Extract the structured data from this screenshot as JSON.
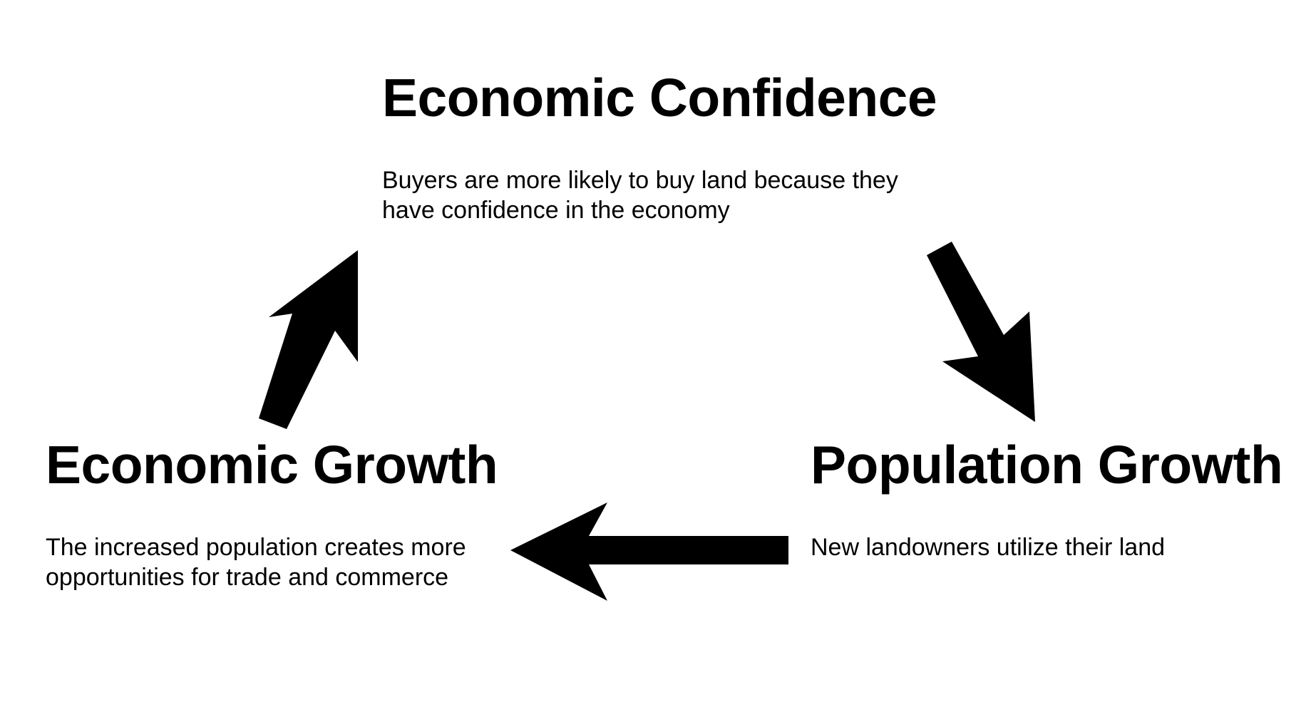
{
  "nodes": {
    "economic_confidence": {
      "title": "Economic Confidence",
      "description": "Buyers are more likely to buy land because they have confidence in the economy"
    },
    "population_growth": {
      "title": "Population Growth",
      "description": "New landowners utilize their land"
    },
    "economic_growth": {
      "title": "Economic Growth",
      "description": "The increased population creates more opportunities for trade and commerce"
    }
  },
  "colors": {
    "arrow": "#000000",
    "text": "#000000",
    "background": "#ffffff"
  }
}
